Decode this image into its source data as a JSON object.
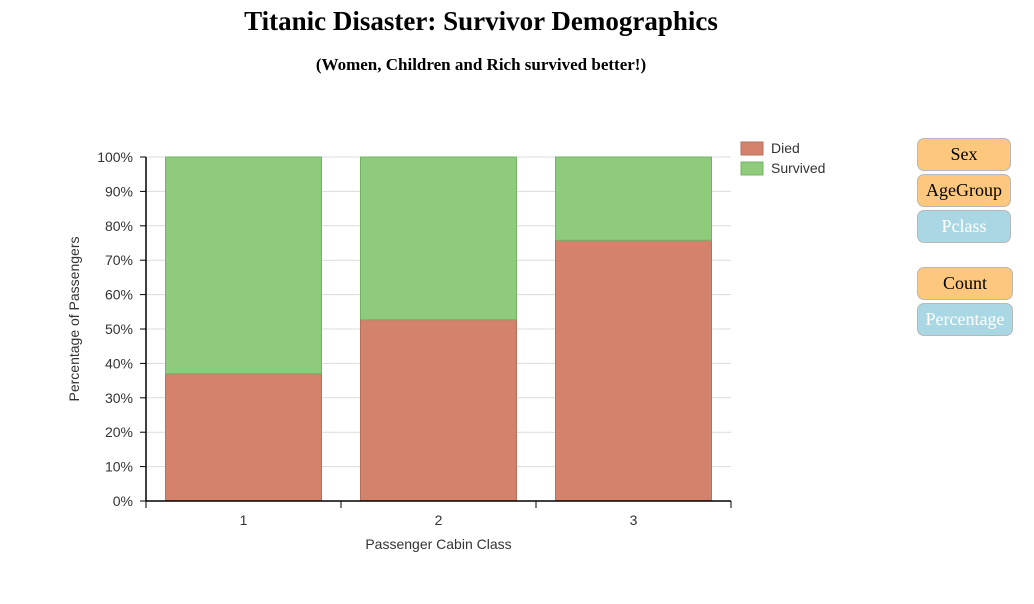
{
  "title": "Titanic Disaster: Survivor Demographics",
  "subtitle": "(Women, Children and Rich survived better!)",
  "controls": {
    "group_buttons": [
      {
        "label": "Sex",
        "state": "active"
      },
      {
        "label": "AgeGroup",
        "state": "active"
      },
      {
        "label": "Pclass",
        "state": "inactive"
      }
    ],
    "mode_buttons": [
      {
        "label": "Count",
        "state": "active"
      },
      {
        "label": "Percentage",
        "state": "inactive"
      }
    ],
    "active_color": "#fdc87d",
    "inactive_color": "#a9d7e3"
  },
  "chart_data": {
    "type": "bar",
    "stacked": true,
    "categories": [
      "1",
      "2",
      "3"
    ],
    "series": [
      {
        "name": "Died",
        "color": "#d4826b",
        "values": [
          37,
          52.7,
          75.8
        ]
      },
      {
        "name": "Survived",
        "color": "#8ecb7c",
        "values": [
          63,
          47.3,
          24.2
        ]
      }
    ],
    "xlabel": "Passenger Cabin Class",
    "ylabel": "Percentage of Passengers",
    "ylim": [
      0,
      100
    ],
    "yticks": [
      "0%",
      "10%",
      "20%",
      "30%",
      "40%",
      "50%",
      "60%",
      "70%",
      "80%",
      "90%",
      "100%"
    ],
    "grid": true,
    "legend_position": "top-right"
  }
}
